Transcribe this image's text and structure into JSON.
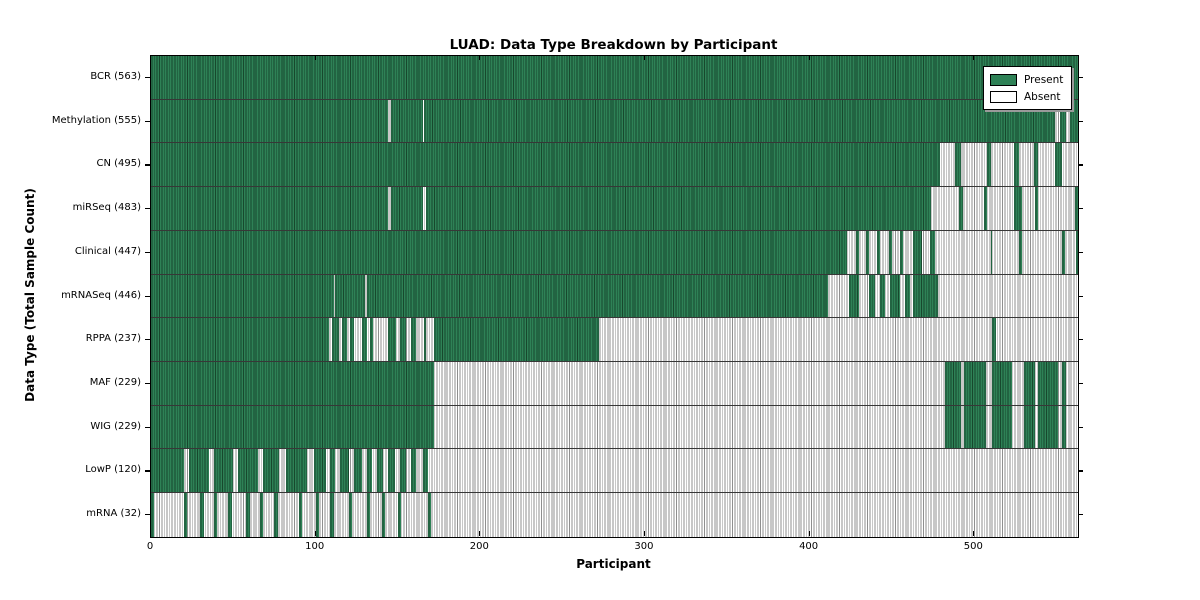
{
  "chart_data": {
    "type": "heatmap",
    "title": "LUAD: Data Type Breakdown by Participant",
    "xlabel": "Participant",
    "ylabel": "Data Type (Total Sample Count)",
    "xlim": [
      0,
      563
    ],
    "x_ticks": [
      0,
      100,
      200,
      300,
      400,
      500
    ],
    "grid": false,
    "legend": {
      "position": "upper right",
      "entries": [
        {
          "label": "Present",
          "color": "#2e8156"
        },
        {
          "label": "Absent",
          "color": "#ffffff"
        }
      ]
    },
    "colors": {
      "present_fill": "#2e8156",
      "present_edge": "#17482d",
      "absent_fill": "#ffffff",
      "absent_edge": "#8f8f8f",
      "axis": "#000000"
    },
    "rows": [
      {
        "label": "BCR (563)",
        "data_type": "BCR",
        "total": 563,
        "present_ranges": [
          [
            0,
            563
          ]
        ]
      },
      {
        "label": "Methylation (555)",
        "data_type": "Methylation",
        "total": 555,
        "present_ranges": [
          [
            0,
            144
          ],
          [
            146,
            165
          ],
          [
            166,
            549
          ],
          [
            552,
            556
          ],
          [
            558,
            563
          ]
        ]
      },
      {
        "label": "CN (495)",
        "data_type": "CN",
        "total": 495,
        "present_ranges": [
          [
            0,
            479
          ],
          [
            488,
            492
          ],
          [
            508,
            510
          ],
          [
            524,
            527
          ],
          [
            536,
            539
          ],
          [
            549,
            553
          ]
        ]
      },
      {
        "label": "miRSeq (483)",
        "data_type": "miRSeq",
        "total": 483,
        "present_ranges": [
          [
            0,
            144
          ],
          [
            146,
            165
          ],
          [
            167,
            474
          ],
          [
            491,
            493
          ],
          [
            506,
            508
          ],
          [
            524,
            529
          ],
          [
            537,
            539
          ],
          [
            561,
            563
          ]
        ]
      },
      {
        "label": "Clinical (447)",
        "data_type": "Clinical",
        "total": 447,
        "present_ranges": [
          [
            0,
            423
          ],
          [
            428,
            430
          ],
          [
            434,
            436
          ],
          [
            441,
            443
          ],
          [
            448,
            450
          ],
          [
            455,
            457
          ],
          [
            463,
            468
          ],
          [
            473,
            476
          ],
          [
            510,
            511
          ],
          [
            527,
            529
          ],
          [
            553,
            555
          ],
          [
            562,
            563
          ]
        ]
      },
      {
        "label": "mRNASeq (446)",
        "data_type": "mRNASeq",
        "total": 446,
        "present_ranges": [
          [
            0,
            111
          ],
          [
            112,
            130
          ],
          [
            131,
            411
          ],
          [
            424,
            430
          ],
          [
            436,
            440
          ],
          [
            443,
            446
          ],
          [
            449,
            455
          ],
          [
            458,
            461
          ],
          [
            463,
            478
          ]
        ]
      },
      {
        "label": "RPPA (237)",
        "data_type": "RPPA",
        "total": 237,
        "present_ranges": [
          [
            0,
            108
          ],
          [
            110,
            114
          ],
          [
            116,
            119
          ],
          [
            121,
            123
          ],
          [
            128,
            131
          ],
          [
            133,
            135
          ],
          [
            144,
            149
          ],
          [
            151,
            155
          ],
          [
            158,
            161
          ],
          [
            166,
            167
          ],
          [
            172,
            272
          ],
          [
            511,
            513
          ]
        ]
      },
      {
        "label": "MAF (229)",
        "data_type": "MAF",
        "total": 229,
        "present_ranges": [
          [
            0,
            172
          ],
          [
            482,
            492
          ],
          [
            494,
            507
          ],
          [
            511,
            523
          ],
          [
            530,
            537
          ],
          [
            539,
            551
          ],
          [
            553,
            556
          ]
        ]
      },
      {
        "label": "WIG (229)",
        "data_type": "WIG",
        "total": 229,
        "present_ranges": [
          [
            0,
            172
          ],
          [
            482,
            492
          ],
          [
            494,
            507
          ],
          [
            511,
            523
          ],
          [
            530,
            537
          ],
          [
            539,
            551
          ],
          [
            553,
            556
          ]
        ]
      },
      {
        "label": "LowP (120)",
        "data_type": "LowP",
        "total": 120,
        "present_ranges": [
          [
            0,
            20
          ],
          [
            23,
            35
          ],
          [
            38,
            50
          ],
          [
            53,
            65
          ],
          [
            68,
            78
          ],
          [
            82,
            95
          ],
          [
            99,
            106
          ],
          [
            109,
            112
          ],
          [
            115,
            120
          ],
          [
            123,
            128
          ],
          [
            131,
            134
          ],
          [
            137,
            141
          ],
          [
            144,
            148
          ],
          [
            151,
            155
          ],
          [
            158,
            161
          ],
          [
            165,
            168
          ]
        ]
      },
      {
        "label": "mRNA (32)",
        "data_type": "mRNA",
        "total": 32,
        "present_ranges": [
          [
            0,
            2
          ],
          [
            20,
            22
          ],
          [
            30,
            32
          ],
          [
            38,
            40
          ],
          [
            47,
            49
          ],
          [
            58,
            60
          ],
          [
            66,
            68
          ],
          [
            75,
            77
          ],
          [
            90,
            92
          ],
          [
            100,
            102
          ],
          [
            109,
            111
          ],
          [
            120,
            122
          ],
          [
            131,
            133
          ],
          [
            140,
            142
          ],
          [
            150,
            152
          ],
          [
            168,
            170
          ]
        ]
      }
    ]
  }
}
